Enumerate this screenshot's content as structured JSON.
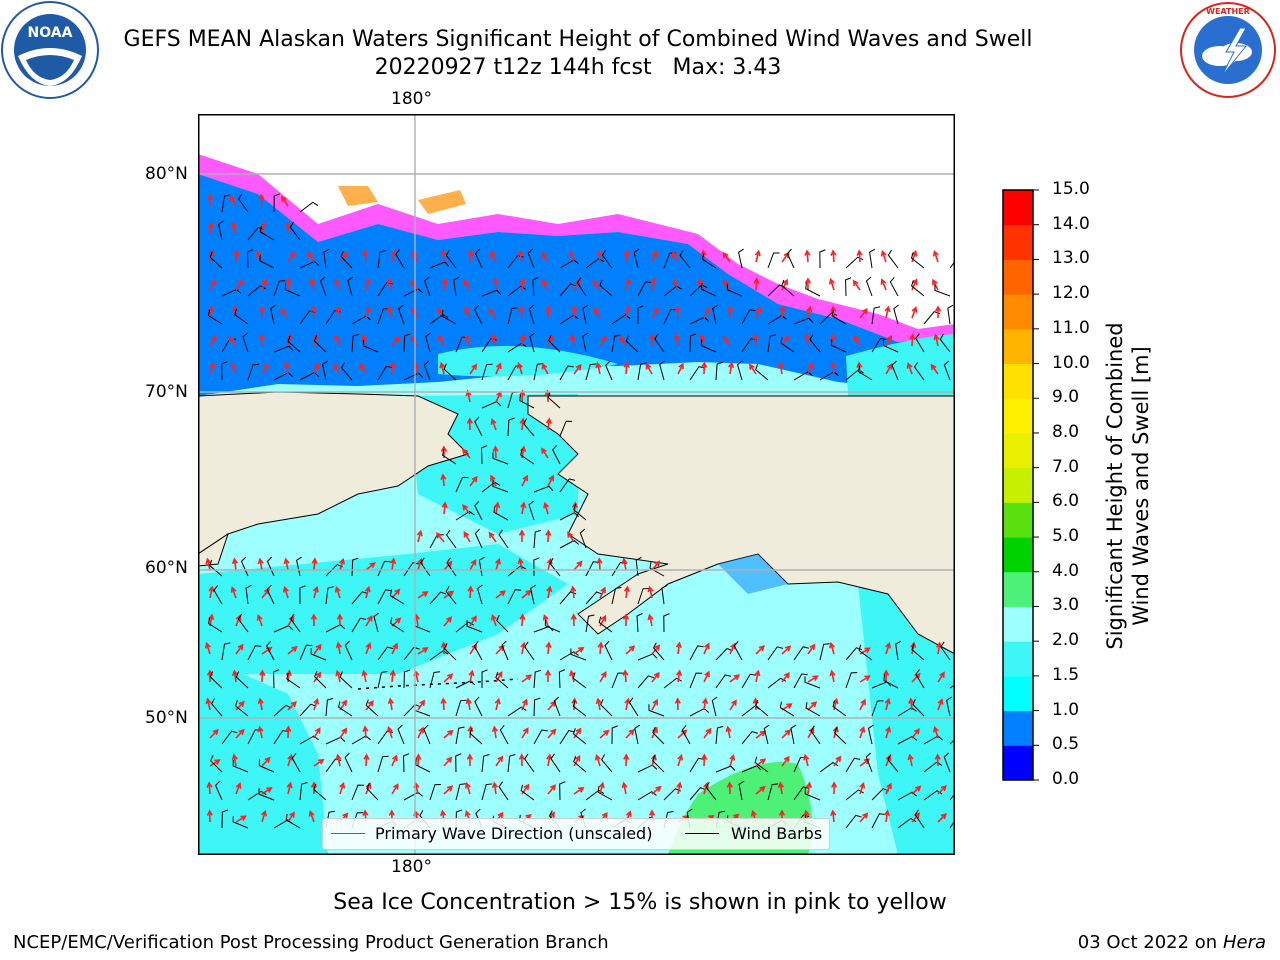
{
  "header": {
    "title_line1": "GEFS MEAN Alaskan Waters Significant Height of Combined Wind Waves and Swell",
    "title_line2": "20220927 t12z 144h fcst   Max: 3.43"
  },
  "logos": {
    "noaa": {
      "text": "NOAA",
      "ring_text": "NATIONAL OCEANIC AND ATMOSPHERIC ADMINISTRATION · U.S. DEPARTMENT OF COMMERCE",
      "color": "#1f5aa6"
    },
    "nws": {
      "ring_text": "NATIONAL WEATHER SERVICE",
      "color": "#d7261e"
    }
  },
  "map": {
    "lon_label_top": "180°",
    "lon_label_bottom": "180°",
    "lat_labels": [
      "80°N",
      "70°N",
      "60°N",
      "50°N"
    ],
    "land_color": "#efecdc",
    "ocean_colors": {
      "light_cyan": "#9effff",
      "cyan": "#3ff6f6",
      "blue": "#0080ff",
      "green": "#4ef178",
      "ice_pink": "#ff5aff",
      "ice_orange": "#ffb04a"
    }
  },
  "legend": {
    "wave_label": "Primary Wave Direction (unscaled)",
    "wave_color": "#ff2020",
    "wind_label": "Wind Barbs",
    "wind_color": "#000000"
  },
  "colorbar": {
    "label_line1": "Significant Height of Combined",
    "label_line2": "Wind Waves and Swell [m]",
    "ticks": [
      "0.0",
      "0.5",
      "1.0",
      "1.5",
      "2.0",
      "3.0",
      "4.0",
      "5.0",
      "6.0",
      "7.0",
      "8.0",
      "9.0",
      "10.0",
      "11.0",
      "12.0",
      "13.0",
      "14.0",
      "15.0"
    ],
    "colors": [
      "#0000ff",
      "#0080ff",
      "#00ffff",
      "#3ff6f6",
      "#9effff",
      "#4ef178",
      "#00d200",
      "#5ae00f",
      "#c6f000",
      "#e8f000",
      "#fff000",
      "#ffe000",
      "#ffb400",
      "#ff8c00",
      "#ff6400",
      "#ff3200",
      "#ff0000"
    ]
  },
  "footer": {
    "note": "Sea Ice Concentration > 15% is shown in pink to yellow",
    "left": "NCEP/EMC/Verification Post Processing Product Generation Branch",
    "right_date": "03 Oct 2022 on",
    "right_machine": "Hera"
  }
}
